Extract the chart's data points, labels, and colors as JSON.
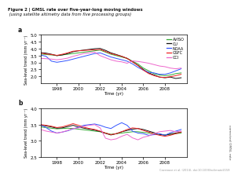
{
  "title_bold": "Figure 2 | GMSL rate over five-year-long moving windows",
  "title_italic": " (using satellite altimetry data from five processing groups)",
  "legend_labels": [
    "AVISO",
    "CU",
    "NOAA",
    "GSFC",
    "CCI"
  ],
  "legend_colors": [
    "#33aa33",
    "#111111",
    "#3355ff",
    "#ee2222",
    "#ee66cc"
  ],
  "xlabel": "Time (yr)",
  "ylabel_a": "Sea-level trend (mm yr⁻¹)",
  "ylabel_b": "Sea-level trend (mm yr⁻¹)",
  "ylabel_right": "corrected GMSL rate",
  "panel_a_label": "a",
  "panel_b_label": "b",
  "time": [
    1996.0,
    1996.5,
    1997.0,
    1997.5,
    1998.0,
    1998.5,
    1999.0,
    1999.5,
    2000.0,
    2000.5,
    2001.0,
    2001.5,
    2002.0,
    2002.5,
    2003.0,
    2003.5,
    2004.0,
    2004.5,
    2005.0,
    2005.5,
    2006.0,
    2006.5,
    2007.0,
    2007.5,
    2008.0,
    2008.5,
    2009.0,
    2009.5
  ],
  "panel_a": {
    "AVISO": [
      3.65,
      3.62,
      3.58,
      3.55,
      3.5,
      3.55,
      3.6,
      3.65,
      3.7,
      3.75,
      3.8,
      3.85,
      3.9,
      3.75,
      3.6,
      3.5,
      3.4,
      3.3,
      3.1,
      2.9,
      2.6,
      2.4,
      2.2,
      2.1,
      2.05,
      2.1,
      2.2,
      2.25
    ],
    "CU": [
      3.7,
      3.72,
      3.68,
      3.6,
      3.5,
      3.55,
      3.65,
      3.78,
      3.85,
      3.9,
      3.95,
      4.0,
      4.02,
      3.88,
      3.7,
      3.58,
      3.45,
      3.3,
      3.05,
      2.8,
      2.5,
      2.25,
      2.1,
      1.95,
      1.9,
      1.95,
      1.85,
      1.9
    ],
    "NOAA": [
      3.65,
      3.55,
      3.45,
      3.1,
      3.02,
      3.08,
      3.15,
      3.25,
      3.35,
      3.45,
      3.55,
      3.65,
      3.7,
      3.55,
      3.4,
      3.3,
      3.2,
      3.1,
      2.9,
      2.65,
      2.45,
      2.3,
      2.25,
      2.15,
      2.15,
      2.25,
      2.4,
      2.55
    ],
    "GSFC": [
      3.7,
      3.68,
      3.62,
      3.58,
      3.52,
      3.6,
      3.7,
      3.82,
      3.85,
      3.88,
      3.9,
      3.92,
      3.95,
      3.8,
      3.65,
      3.55,
      3.45,
      3.3,
      3.05,
      2.78,
      2.45,
      2.2,
      2.05,
      1.95,
      1.92,
      1.98,
      2.05,
      2.15
    ],
    "CCI": [
      3.35,
      3.3,
      3.28,
      3.25,
      3.2,
      3.25,
      3.32,
      3.45,
      3.55,
      3.65,
      3.7,
      3.75,
      3.5,
      3.35,
      3.2,
      3.1,
      3.05,
      2.95,
      3.12,
      3.08,
      3.02,
      2.95,
      2.85,
      2.75,
      2.7,
      2.6,
      2.55,
      2.6
    ]
  },
  "panel_b": {
    "AVISO": [
      3.45,
      3.43,
      3.41,
      3.39,
      3.37,
      3.38,
      3.39,
      3.38,
      3.36,
      3.34,
      3.32,
      3.3,
      3.28,
      3.24,
      3.2,
      3.22,
      3.24,
      3.26,
      3.28,
      3.28,
      3.26,
      3.24,
      3.22,
      3.2,
      3.18,
      3.2,
      3.22,
      3.24
    ],
    "CU": [
      3.46,
      3.49,
      3.46,
      3.43,
      3.39,
      3.4,
      3.44,
      3.48,
      3.43,
      3.39,
      3.36,
      3.33,
      3.29,
      3.23,
      3.18,
      3.22,
      3.28,
      3.32,
      3.36,
      3.38,
      3.35,
      3.3,
      3.25,
      3.2,
      3.17,
      3.21,
      3.24,
      3.27
    ],
    "NOAA": [
      3.53,
      3.49,
      3.41,
      3.3,
      3.24,
      3.27,
      3.31,
      3.37,
      3.42,
      3.48,
      3.5,
      3.52,
      3.48,
      3.42,
      3.38,
      3.48,
      3.56,
      3.48,
      3.3,
      3.24,
      3.22,
      3.17,
      3.19,
      3.22,
      3.17,
      3.25,
      3.3,
      3.35
    ],
    "GSFC": [
      3.5,
      3.5,
      3.48,
      3.45,
      3.41,
      3.43,
      3.48,
      3.53,
      3.48,
      3.42,
      3.38,
      3.35,
      3.3,
      3.24,
      3.19,
      3.22,
      3.28,
      3.35,
      3.4,
      3.38,
      3.32,
      3.27,
      3.21,
      3.17,
      3.14,
      3.17,
      3.22,
      3.27
    ],
    "CCI": [
      3.4,
      3.35,
      3.3,
      3.27,
      3.24,
      3.27,
      3.32,
      3.38,
      3.4,
      3.45,
      3.48,
      3.5,
      3.4,
      3.08,
      3.03,
      3.06,
      3.14,
      3.2,
      3.09,
      3.03,
      3.11,
      3.15,
      3.22,
      3.28,
      3.3,
      3.32,
      3.28,
      3.3
    ]
  },
  "ylim_a": [
    1.5,
    5.0
  ],
  "ylim_b": [
    2.5,
    4.0
  ],
  "yticks_a": [
    2.0,
    2.5,
    3.0,
    3.5,
    4.0,
    4.5,
    5.0
  ],
  "yticks_b": [
    2.5,
    3.0,
    3.5,
    4.0
  ],
  "xticks": [
    1998,
    2000,
    2002,
    2004,
    2006,
    2008
  ],
  "xlim": [
    1996.5,
    2010.0
  ],
  "background_color": "#ffffff",
  "caption": "Cazenave et al. (2014), doi:10.1038/nclimate2159"
}
